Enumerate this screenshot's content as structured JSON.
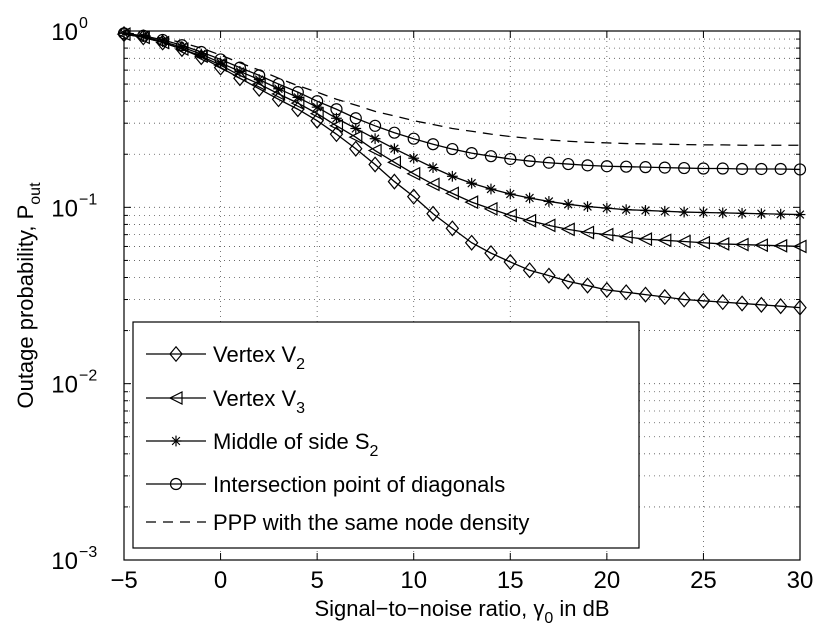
{
  "chart_data": {
    "type": "line",
    "xlabel": "Signal−to−noise ratio, γ",
    "xlabel_sub": "0",
    "xlabel_suffix": " in dB",
    "ylabel": "Outage probability, P",
    "ylabel_sub": "out",
    "xlim": [
      -5,
      30
    ],
    "ylim": [
      0.001,
      1
    ],
    "yscale": "log",
    "grid": true,
    "grid_style": "dotted",
    "legend_position": "bottom-left",
    "x_ticks": [
      -5,
      0,
      5,
      10,
      15,
      20,
      25,
      30
    ],
    "x_tick_labels": [
      "−5",
      "0",
      "5",
      "10",
      "15",
      "20",
      "25",
      "30"
    ],
    "y_ticks": [
      {
        "value": 0.001,
        "base": "10",
        "exp": "−3"
      },
      {
        "value": 0.01,
        "base": "10",
        "exp": "−2"
      },
      {
        "value": 0.1,
        "base": "10",
        "exp": "−1"
      },
      {
        "value": 1,
        "base": "10",
        "exp": "0"
      }
    ],
    "x": [
      -5,
      -4,
      -3,
      -2,
      -1,
      0,
      1,
      2,
      3,
      4,
      5,
      6,
      7,
      8,
      9,
      10,
      11,
      12,
      13,
      14,
      15,
      16,
      17,
      18,
      19,
      20,
      21,
      22,
      23,
      24,
      25,
      26,
      27,
      28,
      29,
      30
    ],
    "series": [
      {
        "name": "Vertex V",
        "name_sub": "2",
        "marker": "diamond",
        "line": "solid",
        "values": [
          0.96,
          0.92,
          0.86,
          0.79,
          0.71,
          0.62,
          0.54,
          0.47,
          0.41,
          0.36,
          0.31,
          0.26,
          0.215,
          0.175,
          0.14,
          0.115,
          0.092,
          0.076,
          0.063,
          0.055,
          0.049,
          0.044,
          0.041,
          0.038,
          0.036,
          0.034,
          0.033,
          0.032,
          0.031,
          0.03,
          0.0295,
          0.029,
          0.0285,
          0.028,
          0.0275,
          0.027
        ]
      },
      {
        "name": "Vertex V",
        "name_sub": "3",
        "marker": "triangle-left",
        "line": "solid",
        "values": [
          0.96,
          0.92,
          0.86,
          0.79,
          0.72,
          0.64,
          0.56,
          0.5,
          0.44,
          0.39,
          0.34,
          0.29,
          0.25,
          0.21,
          0.18,
          0.155,
          0.135,
          0.12,
          0.107,
          0.098,
          0.09,
          0.084,
          0.079,
          0.075,
          0.072,
          0.07,
          0.068,
          0.066,
          0.065,
          0.064,
          0.063,
          0.062,
          0.0615,
          0.061,
          0.0605,
          0.06
        ]
      },
      {
        "name": "Middle of side S",
        "name_sub": "2",
        "marker": "star",
        "line": "solid",
        "values": [
          0.97,
          0.93,
          0.87,
          0.81,
          0.74,
          0.66,
          0.59,
          0.53,
          0.47,
          0.42,
          0.37,
          0.32,
          0.28,
          0.245,
          0.215,
          0.19,
          0.168,
          0.15,
          0.137,
          0.127,
          0.119,
          0.113,
          0.108,
          0.104,
          0.101,
          0.099,
          0.097,
          0.096,
          0.095,
          0.094,
          0.0935,
          0.093,
          0.0925,
          0.092,
          0.0915,
          0.091
        ]
      },
      {
        "name": "Intersection point of diagonals",
        "name_sub": "",
        "marker": "circle",
        "line": "solid",
        "values": [
          0.97,
          0.94,
          0.89,
          0.83,
          0.76,
          0.69,
          0.62,
          0.56,
          0.5,
          0.45,
          0.4,
          0.36,
          0.32,
          0.29,
          0.265,
          0.245,
          0.228,
          0.214,
          0.203,
          0.195,
          0.188,
          0.183,
          0.179,
          0.176,
          0.173,
          0.171,
          0.17,
          0.169,
          0.168,
          0.167,
          0.166,
          0.166,
          0.165,
          0.165,
          0.165,
          0.164
        ]
      },
      {
        "name": "PPP with the same node density",
        "name_sub": "",
        "marker": "none",
        "line": "dashed",
        "values": [
          0.98,
          0.95,
          0.91,
          0.86,
          0.8,
          0.73,
          0.66,
          0.6,
          0.54,
          0.49,
          0.45,
          0.41,
          0.38,
          0.35,
          0.33,
          0.31,
          0.295,
          0.28,
          0.27,
          0.26,
          0.252,
          0.246,
          0.241,
          0.237,
          0.234,
          0.232,
          0.23,
          0.229,
          0.228,
          0.227,
          0.226,
          0.226,
          0.225,
          0.225,
          0.225,
          0.225
        ]
      }
    ]
  }
}
